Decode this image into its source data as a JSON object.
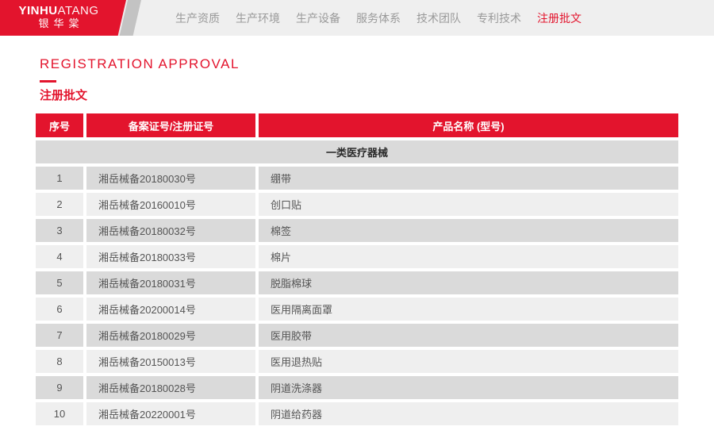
{
  "brand": {
    "name_en_bold": "YINHU",
    "name_en_light": "ATANG",
    "name_cn": "银华棠"
  },
  "nav": {
    "items": [
      {
        "key": "production-qualification",
        "label": "生产资质",
        "active": false
      },
      {
        "key": "production-environment",
        "label": "生产环境",
        "active": false
      },
      {
        "key": "production-equipment",
        "label": "生产设备",
        "active": false
      },
      {
        "key": "service-system",
        "label": "服务体系",
        "active": false
      },
      {
        "key": "technical-team",
        "label": "技术团队",
        "active": false
      },
      {
        "key": "patent-technology",
        "label": "专利技术",
        "active": false
      },
      {
        "key": "registration-approval",
        "label": "注册批文",
        "active": true
      }
    ]
  },
  "page": {
    "title_en": "REGISTRATION APPROVAL",
    "title_cn": "注册批文"
  },
  "table": {
    "headers": [
      "序号",
      "备案证号/注册证号",
      "产品名称 (型号)"
    ],
    "section": "一类医疗器械",
    "rows": [
      {
        "no": "1",
        "cert": "湘岳械备20180030号",
        "product": "绷带"
      },
      {
        "no": "2",
        "cert": "湘岳械备20160010号",
        "product": "创口贴"
      },
      {
        "no": "3",
        "cert": "湘岳械备20180032号",
        "product": "棉签"
      },
      {
        "no": "4",
        "cert": "湘岳械备20180033号",
        "product": "棉片"
      },
      {
        "no": "5",
        "cert": "湘岳械备20180031号",
        "product": "脱脂棉球"
      },
      {
        "no": "6",
        "cert": "湘岳械备20200014号",
        "product": "医用隔离面罩"
      },
      {
        "no": "7",
        "cert": "湘岳械备20180029号",
        "product": "医用胶带"
      },
      {
        "no": "8",
        "cert": "湘岳械备20150013号",
        "product": "医用退热贴"
      },
      {
        "no": "9",
        "cert": "湘岳械备20180028号",
        "product": "阴道洗涤器"
      },
      {
        "no": "10",
        "cert": "湘岳械备20220001号",
        "product": "阴道给药器"
      }
    ]
  },
  "colors": {
    "brand_red": "#e3142d",
    "nav_bg": "#efefef",
    "nav_text": "#9a9a9a",
    "stripe_gray": "#c3c3c3",
    "row_dark": "#dadada",
    "row_light": "#efefef",
    "cell_text": "#555555",
    "section_text": "#2b2b2b"
  }
}
